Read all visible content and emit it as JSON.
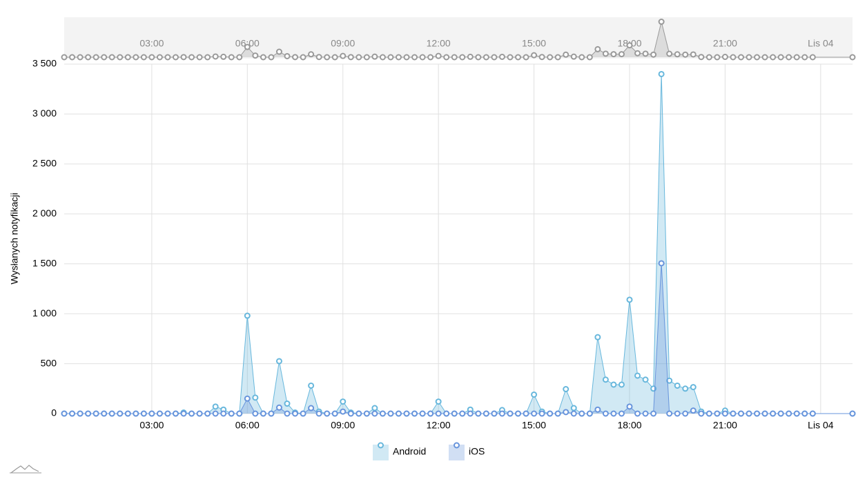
{
  "chart_data": {
    "type": "area",
    "y_label": "Wysłanych notyfikacji",
    "x": [
      0.25,
      0.5,
      0.75,
      1,
      1.25,
      1.5,
      1.75,
      2,
      2.25,
      2.5,
      2.75,
      3,
      3.25,
      3.5,
      3.75,
      4,
      4.25,
      4.5,
      4.75,
      5,
      5.25,
      5.5,
      5.75,
      6,
      6.25,
      6.5,
      6.75,
      7,
      7.25,
      7.5,
      7.75,
      8,
      8.25,
      8.5,
      8.75,
      9,
      9.25,
      9.5,
      9.75,
      10,
      10.25,
      10.5,
      10.75,
      11,
      11.25,
      11.5,
      11.75,
      12,
      12.25,
      12.5,
      12.75,
      13,
      13.25,
      13.5,
      13.75,
      14,
      14.25,
      14.5,
      14.75,
      15,
      15.25,
      15.5,
      15.75,
      16,
      16.25,
      16.5,
      16.75,
      17,
      17.25,
      17.5,
      17.75,
      18,
      18.25,
      18.5,
      18.75,
      19,
      19.25,
      19.5,
      19.75,
      20,
      20.25,
      20.5,
      20.75,
      21,
      21.25,
      21.5,
      21.75,
      22,
      22.25,
      22.5,
      22.75,
      23,
      23.25,
      23.5,
      23.75,
      25
    ],
    "series": [
      {
        "name": "Android",
        "color": "#67b7dc",
        "values": [
          0,
          0,
          0,
          0,
          0,
          0,
          0,
          0,
          0,
          0,
          0,
          0,
          0,
          0,
          0,
          10,
          0,
          0,
          0,
          70,
          40,
          0,
          0,
          980,
          160,
          0,
          0,
          525,
          100,
          10,
          0,
          280,
          20,
          0,
          0,
          120,
          10,
          0,
          0,
          55,
          0,
          0,
          0,
          0,
          0,
          0,
          0,
          120,
          0,
          0,
          0,
          40,
          0,
          0,
          0,
          35,
          0,
          0,
          0,
          190,
          20,
          0,
          0,
          245,
          55,
          0,
          0,
          765,
          340,
          290,
          290,
          1140,
          380,
          340,
          250,
          3400,
          330,
          280,
          250,
          265,
          20,
          0,
          0,
          30,
          0,
          0,
          0,
          0,
          0,
          0,
          0,
          0,
          0,
          0,
          0,
          0
        ]
      },
      {
        "name": "iOS",
        "color": "#6794dc",
        "values": [
          0,
          0,
          0,
          0,
          0,
          0,
          0,
          0,
          0,
          0,
          0,
          0,
          0,
          0,
          0,
          0,
          0,
          0,
          0,
          0,
          0,
          0,
          0,
          150,
          0,
          0,
          0,
          60,
          0,
          0,
          0,
          55,
          0,
          0,
          0,
          20,
          0,
          0,
          0,
          0,
          0,
          0,
          0,
          0,
          0,
          0,
          0,
          0,
          0,
          0,
          0,
          0,
          0,
          0,
          0,
          0,
          0,
          0,
          0,
          0,
          0,
          0,
          0,
          15,
          0,
          0,
          0,
          40,
          0,
          0,
          0,
          70,
          0,
          0,
          0,
          1505,
          0,
          0,
          0,
          30,
          0,
          0,
          0,
          0,
          0,
          0,
          0,
          0,
          0,
          0,
          0,
          0,
          0,
          0,
          0,
          0
        ]
      }
    ],
    "xlim": [
      0.25,
      25
    ],
    "xticks": [
      {
        "value": 3,
        "label": "03:00"
      },
      {
        "value": 6,
        "label": "06:00"
      },
      {
        "value": 9,
        "label": "09:00"
      },
      {
        "value": 12,
        "label": "12:00"
      },
      {
        "value": 15,
        "label": "15:00"
      },
      {
        "value": 18,
        "label": "18:00"
      },
      {
        "value": 21,
        "label": "21:00"
      },
      {
        "value": 24,
        "label": "Lis 04"
      }
    ],
    "ylim": [
      0,
      3500
    ],
    "yticks": [
      0,
      500,
      {
        "value": 1000,
        "label": "1 000"
      },
      {
        "value": 1500,
        "label": "1 500"
      },
      {
        "value": 2000,
        "label": "2 000"
      },
      {
        "value": 2500,
        "label": "2 500"
      },
      {
        "value": 3000,
        "label": "3 000"
      },
      {
        "value": 3500,
        "label": "3 500"
      }
    ],
    "grid": true,
    "legend": "bottom"
  }
}
